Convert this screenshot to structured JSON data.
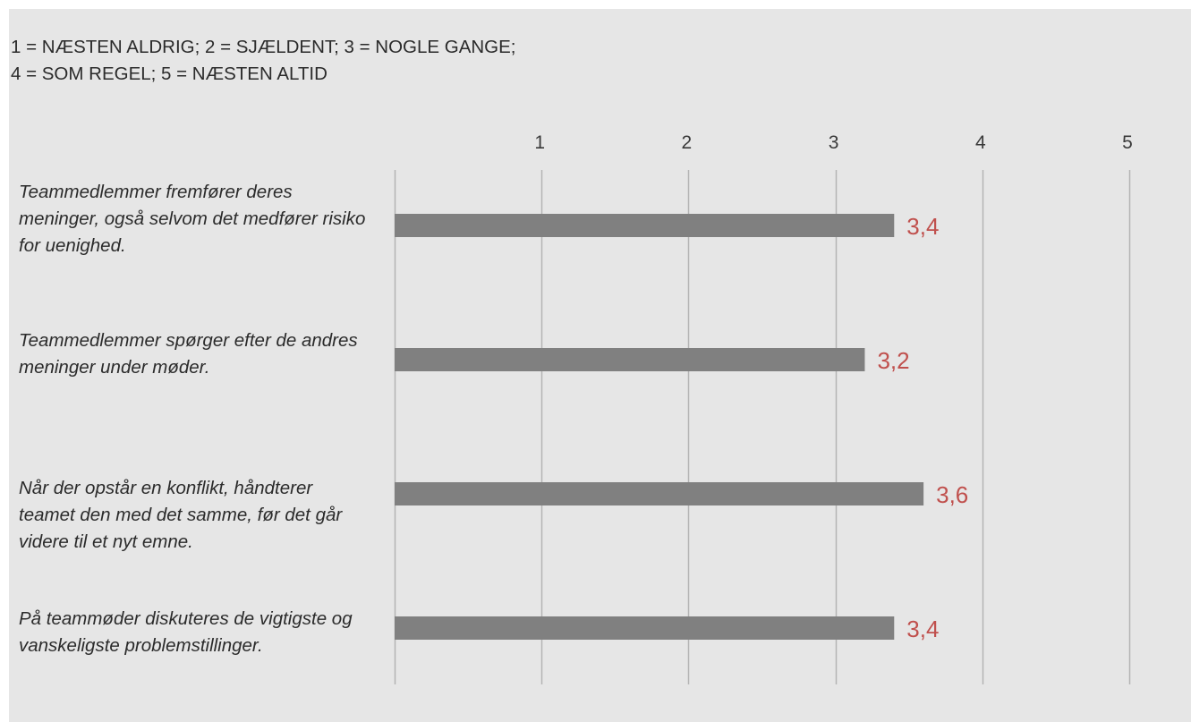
{
  "legend": {
    "line1": "1 = NÆSTEN ALDRIG; 2 = SJÆLDENT; 3 = NOGLE GANGE;",
    "line2": "4 = SOM REGEL; 5 = NÆSTEN ALTID"
  },
  "chart_data": {
    "type": "bar",
    "orientation": "horizontal",
    "categories": [
      "Teammedlemmer fremfører deres meninger, også selvom det medfører risiko for uenighed.",
      "Teammedlemmer spørger efter de andres meninger under møder.",
      "Når der opstår en konflikt, håndterer teamet den med det samme, før det går videre til et nyt emne.",
      "På teammøder diskuteres de vigtigste og vanskeligste problemstillinger."
    ],
    "values": [
      3.4,
      3.2,
      3.6,
      3.4
    ],
    "value_labels": [
      "3,4",
      "3,2",
      "3,6",
      "3,4"
    ],
    "xlim": [
      0,
      5
    ],
    "xticks": [
      "1",
      "2",
      "3",
      "4",
      "5"
    ],
    "grid": true,
    "colors": {
      "bar": "#808080",
      "value_label": "#c0504d",
      "grid": "#b3b3b3",
      "background": "#e6e6e6"
    }
  }
}
